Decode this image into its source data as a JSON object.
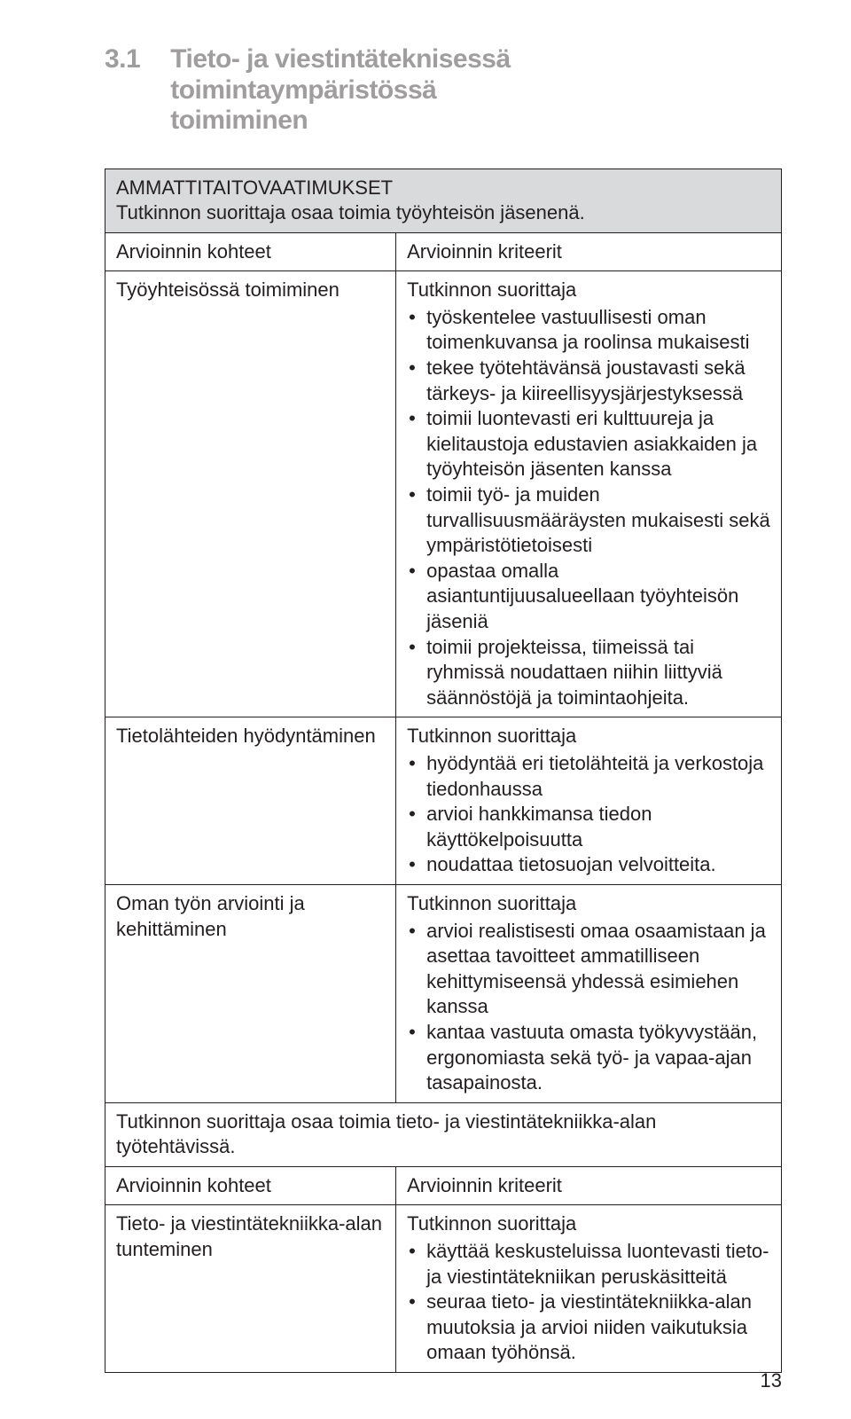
{
  "heading": {
    "number": "3.1",
    "title_line1": "Tieto- ja viestintäteknisessä toimintaympäristössä",
    "title_line2": "toimiminen"
  },
  "table": {
    "header1": {
      "title": "AMMATTITAITOVAATIMUKSET",
      "subtitle": "Tutkinnon suorittaja osaa toimia työyhteisön jäsenenä."
    },
    "colheads1": {
      "left": "Arvioinnin kohteet",
      "right": "Arvioinnin kriteerit"
    },
    "row1": {
      "left": "Työyhteisössä toimiminen",
      "right_intro": "Tutkinnon suorittaja",
      "right_items": [
        "työskentelee vastuullisesti oman toimenkuvansa ja roolinsa mukaisesti",
        "tekee työtehtävänsä joustavasti sekä tärkeys- ja kiireellisyysjärjestyksessä",
        "toimii luontevasti eri kulttuureja ja kielitaustoja edustavien asiakkaiden ja työyhteisön jäsenten kanssa",
        "toimii työ- ja muiden turvallisuusmääräysten mukaisesti sekä ympäristötietoisesti",
        "opastaa omalla asiantuntijuusalueellaan työyhteisön jäseniä",
        "toimii projekteissa, tiimeissä tai ryhmissä noudattaen niihin liittyviä säännöstöjä ja toimintaohjeita."
      ]
    },
    "row2": {
      "left": "Tietolähteiden hyödyntäminen",
      "right_intro": "Tutkinnon suorittaja",
      "right_items": [
        "hyödyntää eri tietolähteitä ja verkostoja tiedonhaussa",
        "arvioi hankkimansa tiedon käyttökelpoisuutta",
        "noudattaa tietosuojan velvoitteita."
      ]
    },
    "row3": {
      "left": "Oman työn arviointi ja kehittäminen",
      "right_intro": "Tutkinnon suorittaja",
      "right_items": [
        "arvioi realistisesti omaa osaamistaan ja asettaa tavoitteet ammatilliseen kehittymiseensä yhdessä esimiehen kanssa",
        "kantaa vastuuta omasta työkyvystään, ergonomiasta sekä työ- ja vapaa-ajan tasapainosta."
      ]
    },
    "span2": "Tutkinnon suorittaja osaa toimia tieto- ja viestintätekniikka-alan työtehtävissä.",
    "colheads2": {
      "left": "Arvioinnin kohteet",
      "right": "Arvioinnin kriteerit"
    },
    "row4": {
      "left": "Tieto- ja viestintätekniikka-alan tunteminen",
      "right_intro": "Tutkinnon suorittaja",
      "right_items": [
        "käyttää keskusteluissa luontevasti tieto- ja viestintätekniikan peruskäsitteitä",
        "seuraa tieto- ja viestintätekniikka-alan muutoksia ja arvioi niiden vaikutuksia omaan työhönsä."
      ]
    }
  },
  "page_number": "13"
}
